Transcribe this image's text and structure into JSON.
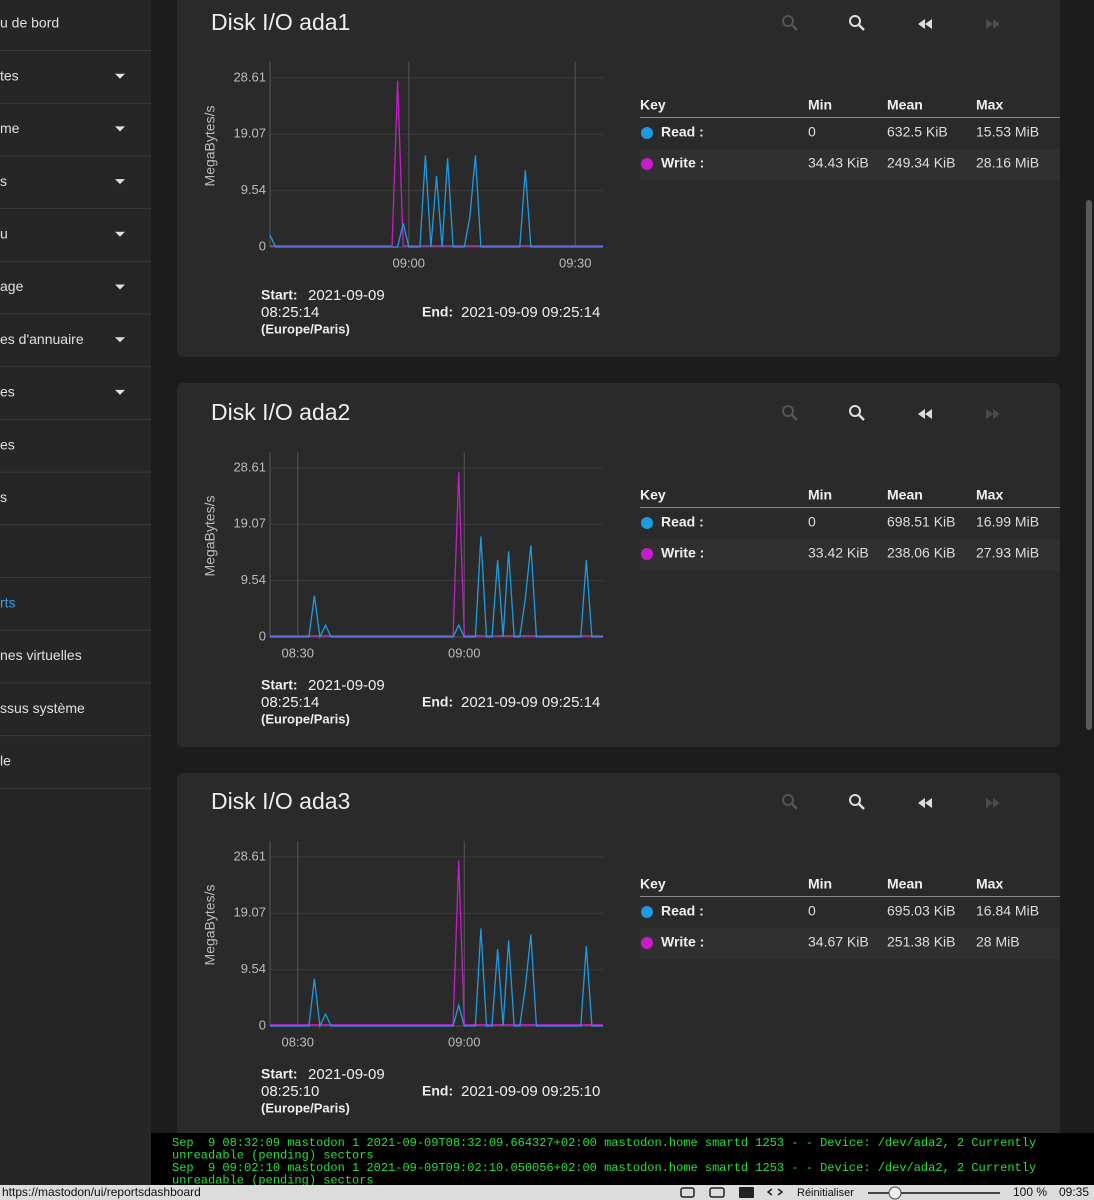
{
  "sidebar": {
    "items": [
      {
        "label": "u de bord"
      },
      {
        "label": "tes",
        "expandable": true
      },
      {
        "label": "me",
        "expandable": true
      },
      {
        "label": "s",
        "expandable": true
      },
      {
        "label": "u",
        "expandable": true
      },
      {
        "label": "age",
        "expandable": true
      },
      {
        "label": "es d'annuaire",
        "expandable": true
      },
      {
        "label": "es",
        "expandable": true
      },
      {
        "label": "es"
      },
      {
        "label": "s"
      },
      {
        "label": "rts",
        "active": true
      },
      {
        "label": "nes virtuelles"
      },
      {
        "label": "ssus système"
      },
      {
        "label": "le"
      }
    ]
  },
  "panels": [
    {
      "title": "Disk I/O ada1",
      "start_label": "Start:",
      "start_date": "2021-09-09",
      "start_time": "08:25:14",
      "timezone": "(Europe/Paris)",
      "end_label": "End:",
      "end": "2021-09-09 09:25:14",
      "legend": {
        "headers": [
          "Key",
          "Min",
          "Mean",
          "Max"
        ],
        "rows": [
          [
            "0",
            "632.5 KiB",
            "15.53 MiB"
          ],
          [
            "34.43 KiB",
            "249.34 KiB",
            "28.16 MiB"
          ]
        ]
      },
      "chart_data": {
        "type": "line",
        "y_label": "MegaBytes/s",
        "xlim": [
          515,
          575
        ],
        "ylim": [
          0,
          31.3
        ],
        "xticks": [
          {
            "value": 540,
            "label": "09:00"
          },
          {
            "value": 570,
            "label": "09:30"
          }
        ],
        "yticks": [
          0,
          9.54,
          19.07,
          28.61
        ],
        "x": [
          515,
          516,
          517,
          518,
          519,
          520,
          521,
          522,
          523,
          524,
          525,
          526,
          527,
          528,
          529,
          530,
          531,
          532,
          533,
          534,
          535,
          536,
          537,
          538,
          539,
          540,
          541,
          542,
          543,
          544,
          545,
          546,
          547,
          548,
          549,
          550,
          551,
          552,
          553,
          554,
          555,
          556,
          557,
          558,
          559,
          560,
          561,
          562,
          563,
          564,
          565,
          566,
          567,
          568,
          569,
          570,
          571,
          572,
          573,
          574,
          575
        ],
        "series": [
          {
            "name": "Read :",
            "color": "#1e9be0",
            "values": [
              2,
              0,
              0,
              0,
              0,
              0,
              0,
              0,
              0,
              0,
              0,
              0,
              0,
              0,
              0,
              0,
              0,
              0,
              0,
              0,
              0,
              0,
              0,
              0,
              4,
              0,
              0,
              0,
              15.5,
              0,
              12,
              0,
              15,
              0,
              0,
              0,
              5,
              15.5,
              0,
              0,
              0,
              0,
              0,
              0,
              0,
              0,
              13,
              0,
              0,
              0,
              0,
              0,
              0,
              0,
              0,
              0,
              0,
              0,
              0,
              0,
              0
            ]
          },
          {
            "name": "Write :",
            "color": "#c61cc9",
            "values": [
              0.2,
              0.2,
              0.2,
              0.2,
              0.2,
              0.2,
              0.2,
              0.2,
              0.2,
              0.2,
              0.2,
              0.2,
              0.2,
              0.2,
              0.2,
              0.2,
              0.2,
              0.2,
              0.2,
              0.2,
              0.2,
              0.2,
              0.2,
              28.16,
              0.2,
              0.2,
              0.2,
              0.2,
              0.2,
              0.2,
              0.2,
              0.2,
              0.2,
              0.2,
              0.2,
              0.2,
              0.2,
              0.2,
              0.2,
              0.2,
              0.2,
              0.2,
              0.2,
              0.2,
              0.2,
              0.2,
              0.2,
              0.2,
              0.2,
              0.2,
              0.2,
              0.2,
              0.2,
              0.2,
              0.2,
              0.2,
              0.2,
              0.2,
              0.2,
              0.2,
              0.2
            ]
          }
        ]
      }
    },
    {
      "title": "Disk I/O ada2",
      "start_label": "Start:",
      "start_date": "2021-09-09",
      "start_time": "08:25:14",
      "timezone": "(Europe/Paris)",
      "end_label": "End:",
      "end": "2021-09-09 09:25:14",
      "legend": {
        "headers": [
          "Key",
          "Min",
          "Mean",
          "Max"
        ],
        "rows": [
          [
            "0",
            "698.51 KiB",
            "16.99 MiB"
          ],
          [
            "33.42 KiB",
            "238.06 KiB",
            "27.93 MiB"
          ]
        ]
      },
      "chart_data": {
        "type": "line",
        "y_label": "MegaBytes/s",
        "xlim": [
          505,
          565
        ],
        "ylim": [
          0,
          31.3
        ],
        "xticks": [
          {
            "value": 510,
            "label": "08:30"
          },
          {
            "value": 540,
            "label": "09:00"
          }
        ],
        "yticks": [
          0,
          9.54,
          19.07,
          28.61
        ],
        "x": [
          505,
          506,
          507,
          508,
          509,
          510,
          511,
          512,
          513,
          514,
          515,
          516,
          517,
          518,
          519,
          520,
          521,
          522,
          523,
          524,
          525,
          526,
          527,
          528,
          529,
          530,
          531,
          532,
          533,
          534,
          535,
          536,
          537,
          538,
          539,
          540,
          541,
          542,
          543,
          544,
          545,
          546,
          547,
          548,
          549,
          550,
          551,
          552,
          553,
          554,
          555,
          556,
          557,
          558,
          559,
          560,
          561,
          562,
          563,
          564,
          565
        ],
        "series": [
          {
            "name": "Read :",
            "color": "#1e9be0",
            "values": [
              0,
              0,
              0,
              0,
              0,
              0,
              0,
              0,
              7,
              0,
              2,
              0,
              0,
              0,
              0,
              0,
              0,
              0,
              0,
              0,
              0,
              0,
              0,
              0,
              0,
              0,
              0,
              0,
              0,
              0,
              0,
              0,
              0,
              0,
              2,
              0,
              0,
              0,
              17,
              0,
              0,
              13,
              0,
              14.5,
              0,
              0,
              6.5,
              15.5,
              0,
              0,
              0,
              0,
              0,
              0,
              0,
              0,
              0,
              13,
              0,
              0,
              0
            ]
          },
          {
            "name": "Write :",
            "color": "#c61cc9",
            "values": [
              0.2,
              0.2,
              0.2,
              0.2,
              0.2,
              0.2,
              0.2,
              0.2,
              0.2,
              0.2,
              0.2,
              0.2,
              0.2,
              0.2,
              0.2,
              0.2,
              0.2,
              0.2,
              0.2,
              0.2,
              0.2,
              0.2,
              0.2,
              0.2,
              0.2,
              0.2,
              0.2,
              0.2,
              0.2,
              0.2,
              0.2,
              0.2,
              0.2,
              0.2,
              27.93,
              0.2,
              0.2,
              0.2,
              0.2,
              0.2,
              0.2,
              0.2,
              0.2,
              0.2,
              0.2,
              0.2,
              0.2,
              0.2,
              0.2,
              0.2,
              0.2,
              0.2,
              0.2,
              0.2,
              0.2,
              0.2,
              0.2,
              0.2,
              0.2,
              0.2,
              0.2
            ]
          }
        ]
      }
    },
    {
      "title": "Disk I/O ada3",
      "start_label": "Start:",
      "start_date": "2021-09-09",
      "start_time": "08:25:10",
      "timezone": "(Europe/Paris)",
      "end_label": "End:",
      "end": "2021-09-09 09:25:10",
      "legend": {
        "headers": [
          "Key",
          "Min",
          "Mean",
          "Max"
        ],
        "rows": [
          [
            "0",
            "695.03 KiB",
            "16.84 MiB"
          ],
          [
            "34.67 KiB",
            "251.38 KiB",
            "28 MiB"
          ]
        ]
      },
      "chart_data": {
        "type": "line",
        "y_label": "MegaBytes/s",
        "xlim": [
          505,
          565
        ],
        "ylim": [
          0,
          31.3
        ],
        "xticks": [
          {
            "value": 510,
            "label": "08:30"
          },
          {
            "value": 540,
            "label": "09:00"
          }
        ],
        "yticks": [
          0,
          9.54,
          19.07,
          28.61
        ],
        "x": [
          505,
          506,
          507,
          508,
          509,
          510,
          511,
          512,
          513,
          514,
          515,
          516,
          517,
          518,
          519,
          520,
          521,
          522,
          523,
          524,
          525,
          526,
          527,
          528,
          529,
          530,
          531,
          532,
          533,
          534,
          535,
          536,
          537,
          538,
          539,
          540,
          541,
          542,
          543,
          544,
          545,
          546,
          547,
          548,
          549,
          550,
          551,
          552,
          553,
          554,
          555,
          556,
          557,
          558,
          559,
          560,
          561,
          562,
          563,
          564,
          565
        ],
        "series": [
          {
            "name": "Read :",
            "color": "#1e9be0",
            "values": [
              0,
              0,
              0,
              0,
              0,
              0,
              0,
              0,
              8,
              0,
              2,
              0,
              0,
              0,
              0,
              0,
              0,
              0,
              0,
              0,
              0,
              0,
              0,
              0,
              0,
              0,
              0,
              0,
              0,
              0,
              0,
              0,
              0,
              0,
              3.5,
              0,
              0,
              0,
              16.5,
              0,
              0,
              13,
              0,
              14.5,
              0,
              0,
              6.5,
              15.5,
              0,
              0,
              0,
              0,
              0,
              0,
              0,
              0,
              0,
              13.5,
              0,
              0,
              0
            ]
          },
          {
            "name": "Write :",
            "color": "#c61cc9",
            "values": [
              0.2,
              0.2,
              0.2,
              0.2,
              0.2,
              0.2,
              0.2,
              0.2,
              0.2,
              0.2,
              0.2,
              0.2,
              0.2,
              0.2,
              0.2,
              0.2,
              0.2,
              0.2,
              0.2,
              0.2,
              0.2,
              0.2,
              0.2,
              0.2,
              0.2,
              0.2,
              0.2,
              0.2,
              0.2,
              0.2,
              0.2,
              0.2,
              0.2,
              0.2,
              28,
              0.2,
              0.2,
              0.2,
              0.2,
              0.2,
              0.2,
              0.2,
              0.2,
              0.2,
              0.2,
              0.2,
              0.2,
              0.2,
              0.2,
              0.2,
              0.2,
              0.2,
              0.2,
              0.2,
              0.2,
              0.2,
              0.2,
              0.2,
              0.2,
              0.2,
              0.2
            ]
          }
        ]
      }
    }
  ],
  "console": [
    "Sep  9 08:32:09 mastodon 1 2021-09-09T08:32:09.664327+02:00 mastodon.home smartd 1253 - - Device: /dev/ada2, 2 Currently",
    "unreadable (pending) sectors",
    "Sep  9 09:02:10 mastodon 1 2021-09-09T09:02:10.050056+02:00 mastodon.home smartd 1253 - - Device: /dev/ada2, 2 Currently",
    "unreadable (pending) sectors"
  ],
  "statusbar": {
    "url": "https://mastodon/ui/reportsdashboard",
    "reset": "Réinitialiser",
    "zoom": "100 %",
    "clock": "09:35"
  }
}
